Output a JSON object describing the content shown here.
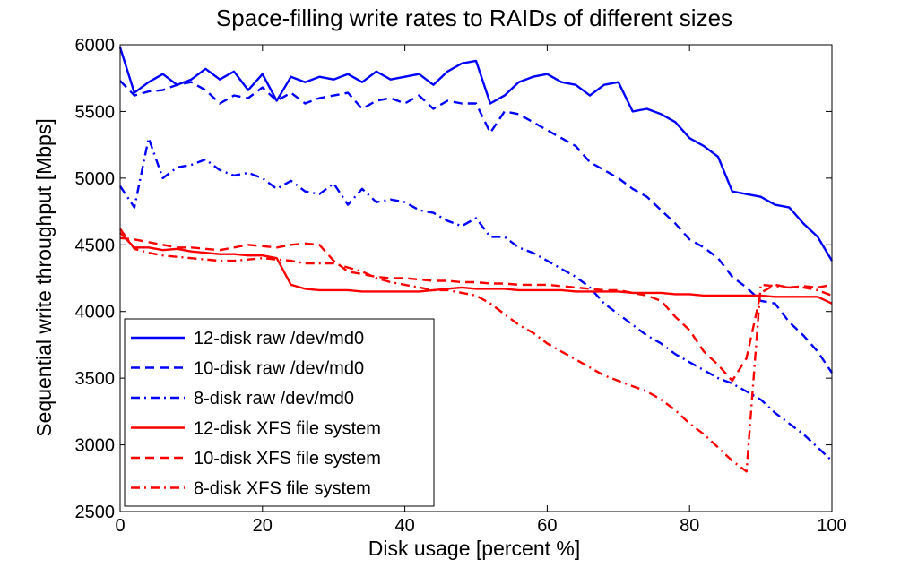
{
  "chart_data": {
    "type": "line",
    "title": "Space-filling write rates to RAIDs of different sizes",
    "xlabel": "Disk usage [percent %]",
    "ylabel": "Sequential write throughput [Mbps]",
    "xlim": [
      0,
      100
    ],
    "ylim": [
      2500,
      6000
    ],
    "xticks": [
      "0",
      "20",
      "40",
      "60",
      "80",
      "100"
    ],
    "yticks": [
      "2500",
      "3000",
      "3500",
      "4000",
      "4500",
      "5000",
      "5500",
      "6000"
    ],
    "grid": false,
    "legend_position": "bottom-left",
    "x": [
      0,
      2,
      4,
      6,
      8,
      10,
      12,
      14,
      16,
      18,
      20,
      22,
      24,
      26,
      28,
      30,
      32,
      34,
      36,
      38,
      40,
      42,
      44,
      46,
      48,
      50,
      52,
      54,
      56,
      58,
      60,
      62,
      64,
      66,
      68,
      70,
      72,
      74,
      76,
      78,
      80,
      82,
      84,
      86,
      88,
      90,
      92,
      94,
      96,
      98,
      100
    ],
    "series": [
      {
        "name": "12-disk raw /dev/md0",
        "color": "#0000ff",
        "dash": "solid",
        "values": [
          5980,
          5640,
          5720,
          5780,
          5700,
          5740,
          5820,
          5740,
          5800,
          5660,
          5780,
          5580,
          5760,
          5720,
          5760,
          5740,
          5780,
          5720,
          5800,
          5740,
          5760,
          5780,
          5700,
          5800,
          5860,
          5880,
          5560,
          5620,
          5720,
          5760,
          5780,
          5720,
          5700,
          5620,
          5700,
          5720,
          5500,
          5520,
          5480,
          5420,
          5300,
          5240,
          5160,
          4900,
          4880,
          4860,
          4800,
          4780,
          4660,
          4560,
          4380
        ]
      },
      {
        "name": "10-disk raw /dev/md0",
        "color": "#0000ff",
        "dash": "dashed",
        "values": [
          5730,
          5620,
          5650,
          5660,
          5700,
          5720,
          5660,
          5560,
          5620,
          5600,
          5680,
          5580,
          5640,
          5560,
          5600,
          5620,
          5640,
          5520,
          5580,
          5600,
          5560,
          5620,
          5520,
          5580,
          5560,
          5560,
          5340,
          5500,
          5480,
          5420,
          5360,
          5300,
          5240,
          5120,
          5060,
          5000,
          4920,
          4860,
          4760,
          4660,
          4540,
          4480,
          4400,
          4260,
          4180,
          4080,
          4060,
          3920,
          3820,
          3700,
          3540
        ]
      },
      {
        "name": "8-disk raw /dev/md0",
        "color": "#0000ff",
        "dash": "dashdot",
        "values": [
          4940,
          4780,
          5300,
          5000,
          5080,
          5100,
          5140,
          5060,
          5020,
          5040,
          5000,
          4920,
          4980,
          4900,
          4880,
          4960,
          4800,
          4920,
          4820,
          4840,
          4820,
          4760,
          4740,
          4680,
          4640,
          4700,
          4560,
          4560,
          4480,
          4440,
          4380,
          4320,
          4260,
          4180,
          4060,
          3980,
          3900,
          3820,
          3760,
          3680,
          3620,
          3560,
          3500,
          3460,
          3400,
          3340,
          3240,
          3160,
          3080,
          2980,
          2880
        ]
      },
      {
        "name": "12-disk XFS file system",
        "color": "#ff0000",
        "dash": "solid",
        "values": [
          4590,
          4480,
          4480,
          4460,
          4470,
          4450,
          4440,
          4430,
          4430,
          4420,
          4420,
          4400,
          4200,
          4170,
          4160,
          4160,
          4160,
          4150,
          4150,
          4150,
          4150,
          4150,
          4160,
          4170,
          4180,
          4170,
          4170,
          4170,
          4160,
          4160,
          4160,
          4160,
          4150,
          4150,
          4150,
          4150,
          4140,
          4140,
          4140,
          4130,
          4130,
          4120,
          4120,
          4120,
          4120,
          4120,
          4110,
          4110,
          4110,
          4110,
          4060
        ]
      },
      {
        "name": "10-disk XFS file system",
        "color": "#ff0000",
        "dash": "dashed",
        "values": [
          4550,
          4540,
          4520,
          4500,
          4480,
          4480,
          4470,
          4460,
          4480,
          4500,
          4490,
          4480,
          4500,
          4510,
          4500,
          4380,
          4300,
          4280,
          4260,
          4250,
          4250,
          4240,
          4230,
          4230,
          4220,
          4220,
          4210,
          4210,
          4200,
          4200,
          4200,
          4190,
          4180,
          4170,
          4160,
          4160,
          4140,
          4120,
          4080,
          3960,
          3860,
          3700,
          3600,
          3480,
          3650,
          4140,
          4200,
          4180,
          4190,
          4180,
          4200
        ]
      },
      {
        "name": "8-disk XFS file system",
        "color": "#ff0000",
        "dash": "dashdot",
        "values": [
          4620,
          4470,
          4440,
          4420,
          4410,
          4400,
          4390,
          4380,
          4380,
          4390,
          4400,
          4390,
          4380,
          4360,
          4360,
          4360,
          4330,
          4300,
          4250,
          4220,
          4200,
          4180,
          4160,
          4160,
          4140,
          4120,
          4060,
          3980,
          3900,
          3840,
          3760,
          3700,
          3640,
          3580,
          3520,
          3480,
          3440,
          3400,
          3340,
          3260,
          3160,
          3080,
          2980,
          2880,
          2800,
          4200,
          4190,
          4180,
          4180,
          4160,
          4120
        ]
      }
    ]
  }
}
